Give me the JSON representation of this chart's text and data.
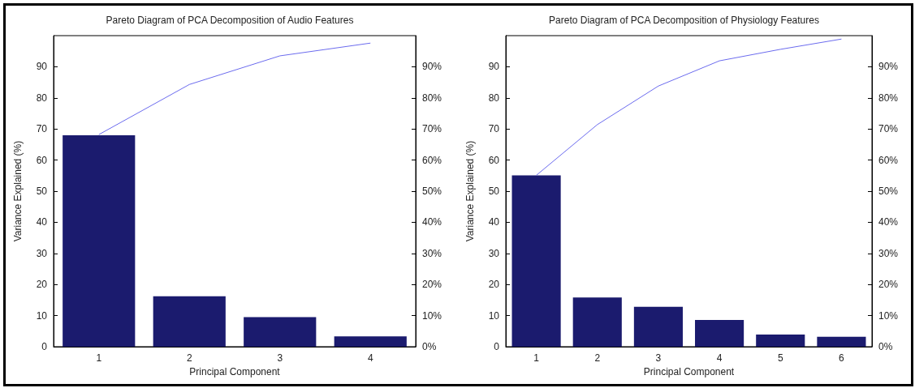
{
  "chart_data": [
    {
      "type": "bar",
      "title": "Pareto Diagram of PCA Decomposition of Audio Features",
      "xlabel": "Principal Component",
      "ylabel": "Variance Explained (%)",
      "categories": [
        "1",
        "2",
        "3",
        "4"
      ],
      "series": [
        {
          "color": "#1b1b6e",
          "values": [
            68.0,
            16.2,
            9.5,
            3.3
          ]
        },
        {
          "type": "line",
          "axis": "y2",
          "color": "#6b6bee",
          "values": [
            68.2,
            84.3,
            93.5,
            97.6
          ]
        }
      ],
      "ylim": [
        0,
        100
      ],
      "yticks": [
        0,
        10,
        20,
        30,
        40,
        50,
        60,
        70,
        80,
        90
      ],
      "y2lim": [
        0,
        100
      ],
      "y2ticks": [
        {
          "value": 0,
          "label": "0%"
        },
        {
          "value": 10,
          "label": "10%"
        },
        {
          "value": 20,
          "label": "20%"
        },
        {
          "value": 30,
          "label": "30%"
        },
        {
          "value": 40,
          "label": "40%"
        },
        {
          "value": 50,
          "label": "50%"
        },
        {
          "value": 60,
          "label": "60%"
        },
        {
          "value": 70,
          "label": "70%"
        },
        {
          "value": 80,
          "label": "80%"
        },
        {
          "value": 90,
          "label": "90%"
        }
      ],
      "grid": false,
      "marker": "none"
    },
    {
      "type": "bar",
      "title": "Pareto Diagram of PCA Decomposition of Physiology Features",
      "xlabel": "Principal Component",
      "ylabel": "Variance Explained (%)",
      "categories": [
        "1",
        "2",
        "3",
        "4",
        "5",
        "6"
      ],
      "series": [
        {
          "color": "#1b1b6e",
          "values": [
            55.1,
            15.8,
            12.8,
            8.6,
            3.9,
            3.2
          ]
        },
        {
          "type": "line",
          "axis": "y2",
          "color": "#6b6bee",
          "values": [
            55.1,
            71.4,
            83.8,
            91.9,
            95.6,
            98.9
          ]
        }
      ],
      "ylim": [
        0,
        100
      ],
      "yticks": [
        0,
        10,
        20,
        30,
        40,
        50,
        60,
        70,
        80,
        90
      ],
      "y2lim": [
        0,
        100
      ],
      "y2ticks": [
        {
          "value": 0,
          "label": "0%"
        },
        {
          "value": 10,
          "label": "10%"
        },
        {
          "value": 20,
          "label": "20%"
        },
        {
          "value": 30,
          "label": "30%"
        },
        {
          "value": 40,
          "label": "40%"
        },
        {
          "value": 50,
          "label": "50%"
        },
        {
          "value": 60,
          "label": "60%"
        },
        {
          "value": 70,
          "label": "70%"
        },
        {
          "value": 80,
          "label": "80%"
        },
        {
          "value": 90,
          "label": "90%"
        }
      ],
      "grid": false,
      "marker": "none"
    }
  ]
}
